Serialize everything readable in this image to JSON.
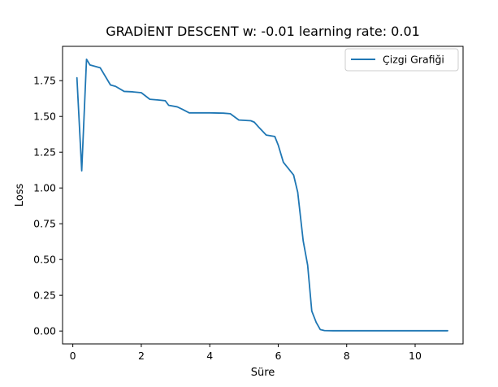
{
  "chart_data": {
    "type": "line",
    "title": "GRADİENT DESCENT w: -0.01 learning rate: 0.01",
    "xlabel": "Süre",
    "ylabel": "Loss",
    "xlim": [
      -0.3,
      11.4
    ],
    "ylim": [
      -0.09,
      1.99
    ],
    "xticks": [
      0,
      2,
      4,
      6,
      8,
      10
    ],
    "yticks": [
      0.0,
      0.25,
      0.5,
      0.75,
      1.0,
      1.25,
      1.5,
      1.75
    ],
    "xtick_labels": [
      "0",
      "2",
      "4",
      "6",
      "8",
      "10"
    ],
    "ytick_labels": [
      "0.00",
      "0.25",
      "0.50",
      "0.75",
      "1.00",
      "1.25",
      "1.50",
      "1.75"
    ],
    "grid": false,
    "legend_position": "top-right",
    "series": [
      {
        "name": "Çizgi Grafiği",
        "color": "#1f77b4",
        "x": [
          0.12,
          0.26,
          0.4,
          0.5,
          0.8,
          1.1,
          1.25,
          1.5,
          1.75,
          2.0,
          2.25,
          2.5,
          2.7,
          2.8,
          3.05,
          3.2,
          3.4,
          4.0,
          4.4,
          4.6,
          4.85,
          5.2,
          5.3,
          5.45,
          5.65,
          5.9,
          6.0,
          6.15,
          6.45,
          6.57,
          6.73,
          6.86,
          6.98,
          7.11,
          7.23,
          7.35,
          7.6,
          8.0,
          9.0,
          10.0,
          10.95
        ],
        "y": [
          1.77,
          1.12,
          1.9,
          1.86,
          1.84,
          1.72,
          1.71,
          1.675,
          1.672,
          1.666,
          1.62,
          1.615,
          1.61,
          1.578,
          1.567,
          1.55,
          1.525,
          1.525,
          1.523,
          1.519,
          1.475,
          1.47,
          1.46,
          1.42,
          1.37,
          1.36,
          1.3,
          1.18,
          1.09,
          0.97,
          0.63,
          0.46,
          0.14,
          0.06,
          0.01,
          0.003,
          0.002,
          0.002,
          0.002,
          0.002,
          0.002
        ]
      }
    ]
  }
}
